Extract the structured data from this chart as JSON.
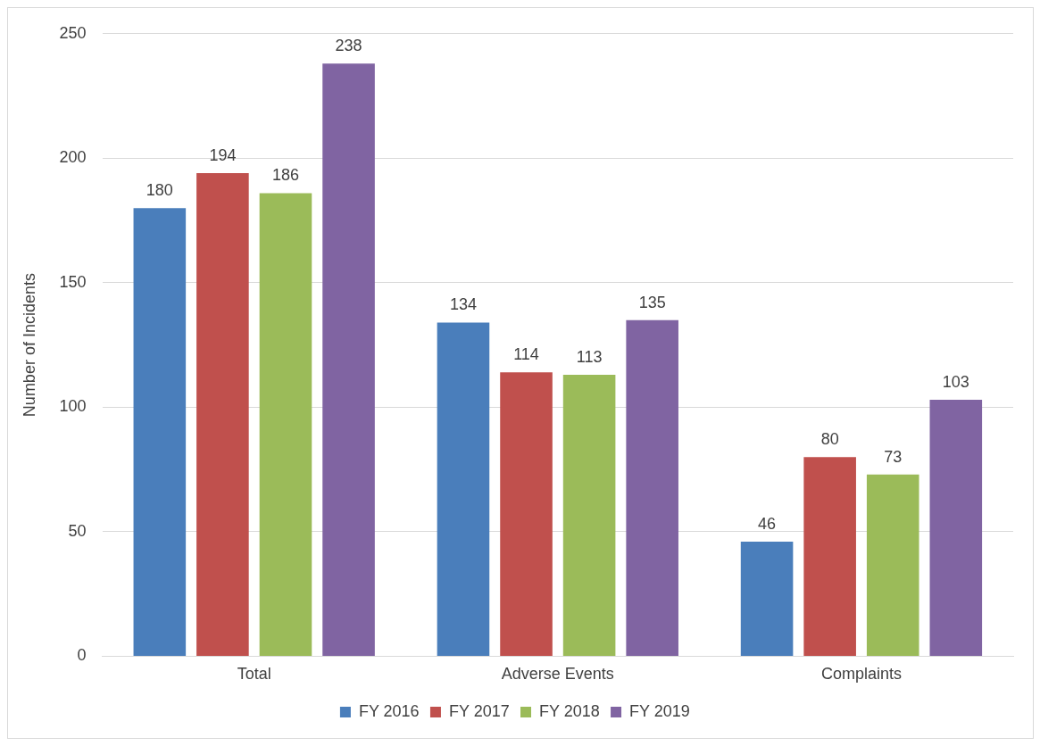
{
  "chart_data": {
    "type": "bar",
    "ylabel": "Number of Incidents",
    "categories": [
      "Total",
      "Adverse Events",
      "Complaints"
    ],
    "series": [
      {
        "name": "FY 2016",
        "color": "#4a7ebb",
        "values": [
          180,
          134,
          46
        ]
      },
      {
        "name": "FY 2017",
        "color": "#c0504d",
        "values": [
          194,
          114,
          80
        ]
      },
      {
        "name": "FY 2018",
        "color": "#9bbb59",
        "values": [
          186,
          113,
          73
        ]
      },
      {
        "name": "FY 2019",
        "color": "#8064a2",
        "values": [
          238,
          135,
          103
        ]
      }
    ],
    "ylim": [
      0,
      250
    ],
    "yticks": [
      0,
      50,
      100,
      150,
      200,
      250
    ],
    "grid": "y",
    "legend": "bottom",
    "data_labels": true
  }
}
